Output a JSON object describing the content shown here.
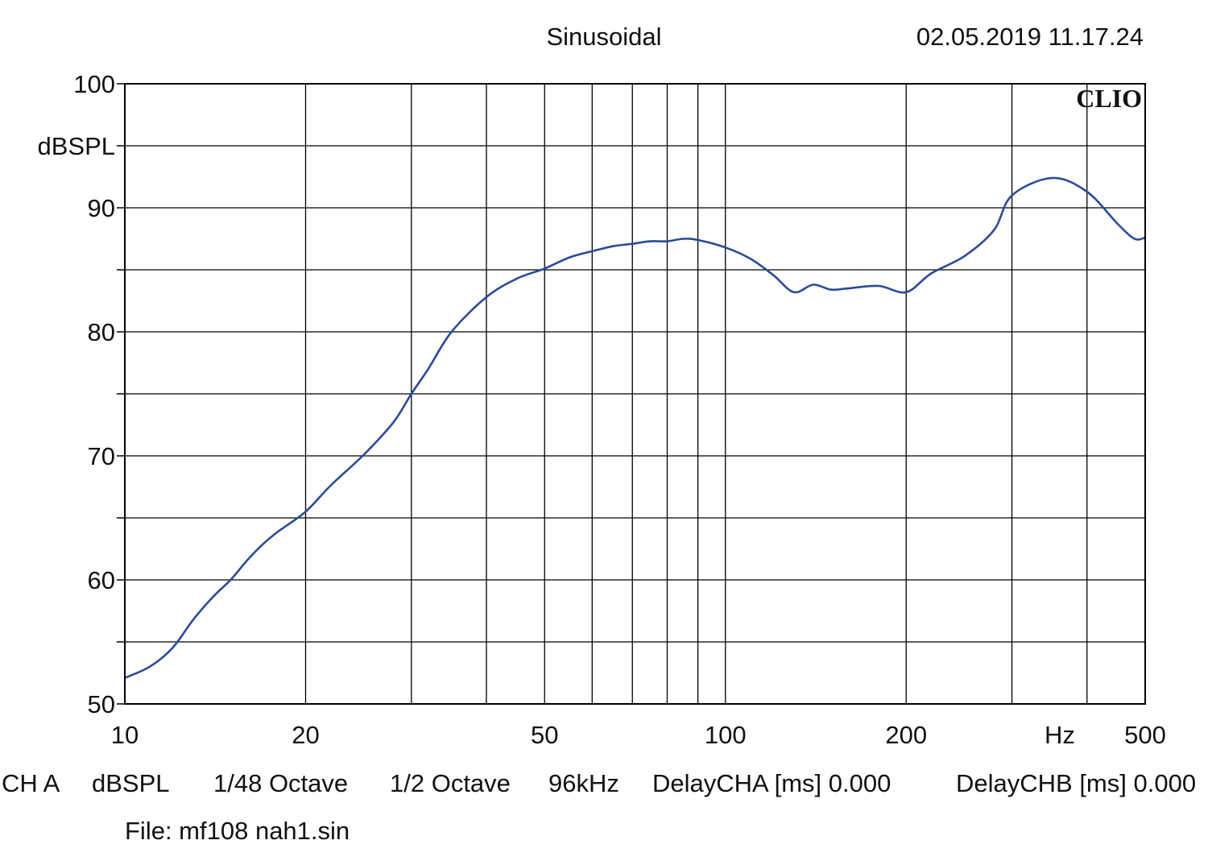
{
  "header": {
    "mode": "Sinusoidal",
    "timestamp": "02.05.2019 11.17.24",
    "brand": "CLIO"
  },
  "footer": {
    "channel": "CH A",
    "unit": "dBSPL",
    "resolution": "1/48 Octave",
    "smoothing": "1/2 Octave",
    "sample_rate": "96kHz",
    "delay_a": "DelayCHA [ms] 0.000",
    "delay_b": "DelayCHB [ms] 0.000",
    "file": "File: mf108 nah1.sin"
  },
  "colors": {
    "curve": "#2a4b9a",
    "grid": "#000000",
    "background": "#ffffff"
  },
  "chart_data": {
    "type": "line",
    "ylabel": "dBSPL",
    "xlabel": "Hz",
    "x_scale": "log",
    "xlim": [
      10,
      500
    ],
    "ylim": [
      50,
      100
    ],
    "grid": true,
    "x_ticks": [
      10,
      20,
      50,
      100,
      200,
      500
    ],
    "x_tick_labels": [
      "10",
      "20",
      "50",
      "100",
      "200",
      "500"
    ],
    "x_grid": [
      10,
      20,
      30,
      40,
      50,
      60,
      70,
      80,
      90,
      100,
      200,
      300,
      400,
      500
    ],
    "y_ticks": [
      50,
      60,
      70,
      80,
      90,
      100
    ],
    "y_tick_labels": [
      "50",
      "60",
      "70",
      "80",
      "90",
      "100"
    ],
    "y_grid": [
      50,
      55,
      60,
      65,
      70,
      75,
      80,
      85,
      90,
      95,
      100
    ],
    "series": [
      {
        "x": [
          10,
          11,
          12,
          13,
          14,
          15,
          16,
          17,
          18,
          20,
          22,
          25,
          28,
          30,
          32,
          35,
          40,
          45,
          50,
          55,
          60,
          65,
          70,
          75,
          80,
          85,
          90,
          100,
          110,
          120,
          130,
          140,
          150,
          160,
          180,
          200,
          220,
          250,
          280,
          300,
          350,
          400,
          450,
          480,
          500
        ],
        "y": [
          52.1,
          53.0,
          54.5,
          56.8,
          58.6,
          60.0,
          61.6,
          62.9,
          63.9,
          65.5,
          67.6,
          70.1,
          72.7,
          75.0,
          77.0,
          80.0,
          82.8,
          84.3,
          85.1,
          86.0,
          86.5,
          86.9,
          87.1,
          87.3,
          87.3,
          87.5,
          87.4,
          86.8,
          85.9,
          84.6,
          83.2,
          83.8,
          83.4,
          83.5,
          83.7,
          83.2,
          84.7,
          86.1,
          88.2,
          91.0,
          92.4,
          91.3,
          88.7,
          87.5,
          87.6
        ]
      }
    ]
  }
}
